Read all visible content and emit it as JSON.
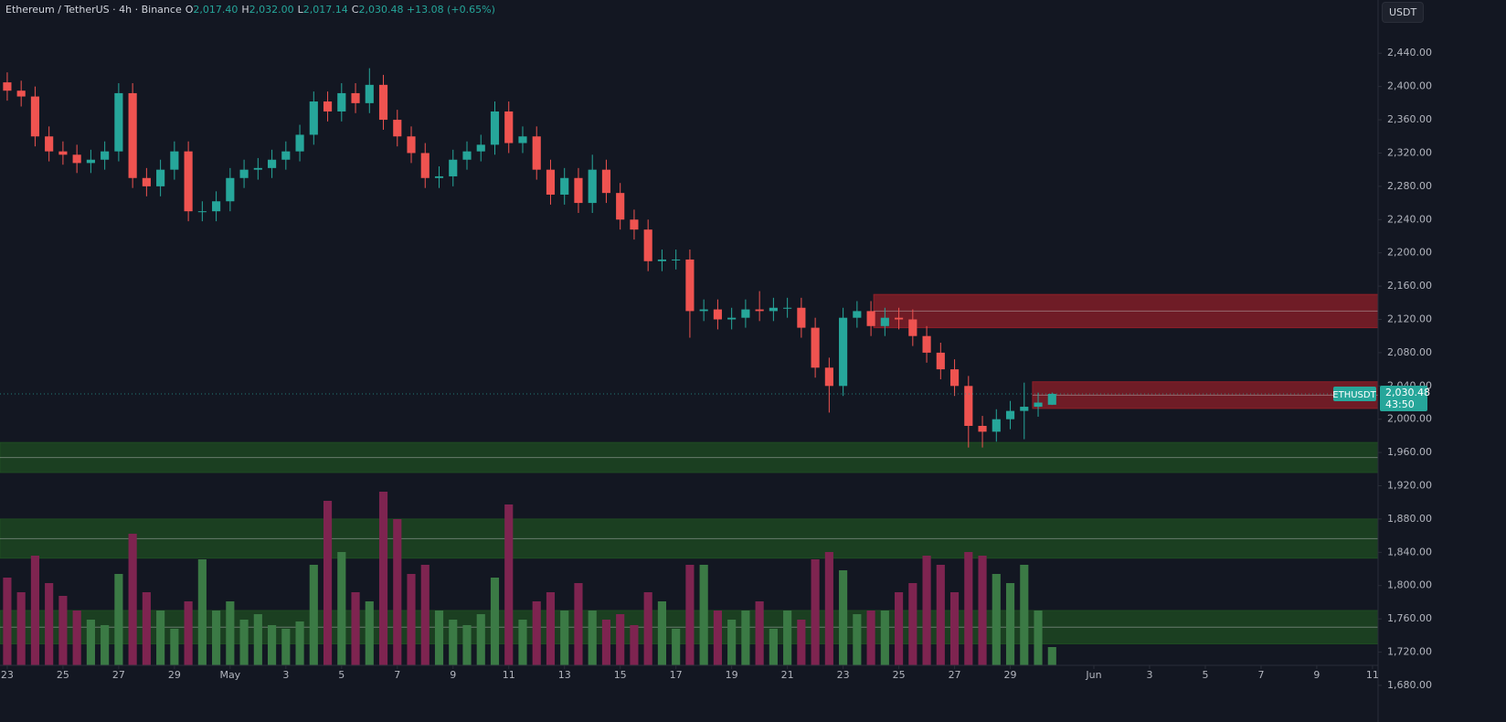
{
  "chart_data": {
    "type": "candlestick",
    "symbol": "Ethereum / TetherUS · 4h · Binance",
    "ohlc_header": [
      {
        "key": "O",
        "value": "2,017.40"
      },
      {
        "key": "H",
        "value": "2,032.00"
      },
      {
        "key": "L",
        "value": "2,017.14"
      },
      {
        "key": "C",
        "value": "2,030.48"
      }
    ],
    "change": "+13.08 (+0.65%)",
    "currency": "USDT",
    "last_price": {
      "value": 2030.48,
      "label": "2,030.48",
      "ticker": "ETHUSDT",
      "countdown": "43:50"
    },
    "up_color": "#26a69a",
    "down_color": "#ef5350",
    "volume_up_color": "#3b7a45",
    "volume_down_color": "#7e2450",
    "x": [
      0,
      0.5,
      1,
      1.5,
      2,
      2.5,
      3,
      3.5,
      4,
      4.5,
      5,
      5.5,
      6,
      6.5,
      7,
      7.5,
      8,
      8.5,
      9,
      9.5,
      10,
      10.5,
      11,
      11.5,
      12,
      12.5,
      13,
      13.5,
      14,
      14.5,
      15,
      15.5,
      16,
      16.5,
      17,
      17.5,
      18,
      18.5,
      19,
      19.5,
      20,
      20.5,
      21,
      21.5,
      22,
      22.5,
      23,
      23.5,
      24,
      24.5,
      25,
      25.5,
      26,
      26.5,
      27,
      27.5,
      28,
      28.5,
      29,
      29.5,
      30,
      30.5,
      31,
      31.5,
      32,
      32.5,
      33,
      33.5,
      34,
      34.5,
      35,
      35.5,
      36,
      36.5,
      37,
      37.5
    ],
    "open": [
      2405,
      2395,
      2388,
      2340,
      2322,
      2318,
      2308,
      2312,
      2322,
      2392,
      2290,
      2280,
      2300,
      2322,
      2250,
      2250,
      2262,
      2290,
      2300,
      2302,
      2312,
      2322,
      2342,
      2382,
      2370,
      2392,
      2380,
      2402,
      2360,
      2340,
      2320,
      2290,
      2292,
      2312,
      2322,
      2330,
      2370,
      2332,
      2340,
      2300,
      2270,
      2290,
      2260,
      2300,
      2272,
      2240,
      2228,
      2190,
      2192,
      2192,
      2130,
      2132,
      2120,
      2122,
      2132,
      2130,
      2134,
      2134,
      2110,
      2062,
      2040,
      2122,
      2130,
      2112,
      2122,
      2120,
      2100,
      2080,
      2060,
      2040,
      1992,
      1985,
      2000,
      2010,
      2015,
      2017.4
    ],
    "high": [
      2417,
      2407,
      2400,
      2352,
      2334,
      2330,
      2324,
      2334,
      2404,
      2404,
      2302,
      2312,
      2334,
      2334,
      2262,
      2274,
      2302,
      2312,
      2314,
      2324,
      2334,
      2354,
      2394,
      2394,
      2404,
      2404,
      2422,
      2414,
      2372,
      2352,
      2332,
      2304,
      2324,
      2334,
      2342,
      2382,
      2382,
      2352,
      2352,
      2312,
      2302,
      2302,
      2318,
      2312,
      2284,
      2252,
      2240,
      2204,
      2204,
      2204,
      2144,
      2144,
      2134,
      2144,
      2154,
      2146,
      2146,
      2146,
      2122,
      2074,
      2134,
      2142,
      2142,
      2134,
      2134,
      2132,
      2112,
      2092,
      2072,
      2052,
      2004,
      2012,
      2022,
      2044,
      2032,
      2032
    ],
    "low": [
      2383,
      2376,
      2328,
      2310,
      2306,
      2296,
      2296,
      2300,
      2310,
      2278,
      2268,
      2268,
      2288,
      2238,
      2238,
      2238,
      2250,
      2278,
      2288,
      2290,
      2300,
      2310,
      2330,
      2358,
      2358,
      2368,
      2368,
      2348,
      2328,
      2308,
      2278,
      2278,
      2280,
      2300,
      2310,
      2318,
      2320,
      2320,
      2288,
      2258,
      2258,
      2248,
      2248,
      2260,
      2228,
      2216,
      2178,
      2178,
      2180,
      2098,
      2118,
      2108,
      2108,
      2110,
      2118,
      2118,
      2122,
      2098,
      2050,
      2008,
      2028,
      2110,
      2100,
      2100,
      2108,
      2088,
      2068,
      2048,
      2028,
      1966,
      1966,
      1973,
      1988,
      1976,
      2003,
      2017.14
    ],
    "close": [
      2395,
      2388,
      2340,
      2322,
      2318,
      2308,
      2312,
      2322,
      2392,
      2290,
      2280,
      2300,
      2322,
      2250,
      2250,
      2262,
      2290,
      2300,
      2302,
      2312,
      2322,
      2342,
      2382,
      2370,
      2392,
      2380,
      2402,
      2360,
      2340,
      2320,
      2290,
      2292,
      2312,
      2322,
      2330,
      2370,
      2332,
      2340,
      2300,
      2270,
      2290,
      2260,
      2300,
      2272,
      2240,
      2228,
      2190,
      2192,
      2192,
      2130,
      2132,
      2120,
      2122,
      2132,
      2130,
      2134,
      2134,
      2110,
      2062,
      2040,
      2122,
      2130,
      2112,
      2122,
      2120,
      2100,
      2080,
      2060,
      2040,
      1992,
      1985,
      2000,
      2010,
      2015,
      2020,
      2030.48
    ],
    "volume": [
      48,
      40,
      60,
      45,
      38,
      30,
      25,
      22,
      50,
      72,
      40,
      30,
      20,
      35,
      58,
      30,
      35,
      25,
      28,
      22,
      20,
      24,
      55,
      90,
      62,
      40,
      35,
      95,
      80,
      50,
      55,
      30,
      25,
      22,
      28,
      48,
      88,
      25,
      35,
      40,
      30,
      45,
      30,
      25,
      28,
      22,
      40,
      35,
      20,
      55,
      55,
      30,
      25,
      30,
      35,
      20,
      30,
      25,
      58,
      62,
      52,
      28,
      30,
      30,
      40,
      45,
      60,
      55,
      40,
      62,
      60,
      50,
      45,
      55,
      30,
      10
    ],
    "vlim": [
      0,
      100
    ],
    "zones": [
      {
        "from": 2110,
        "to": 2150,
        "start": 31.1,
        "color": "#8f1f28"
      },
      {
        "from": 2013,
        "to": 2045,
        "start": 36.8,
        "color": "#8f1f28"
      },
      {
        "from": 1936,
        "to": 1972,
        "color": "#1f4d22"
      },
      {
        "from": 1833,
        "to": 1880,
        "color": "#1f4d22"
      },
      {
        "from": 1730,
        "to": 1770,
        "color": "#1f4d22"
      }
    ],
    "xlim": [
      -0.26,
      49.2
    ],
    "xticks": [
      {
        "value": 0,
        "label": "23"
      },
      {
        "value": 2,
        "label": "25"
      },
      {
        "value": 4,
        "label": "27"
      },
      {
        "value": 6,
        "label": "29"
      },
      {
        "value": 8,
        "label": "May"
      },
      {
        "value": 10,
        "label": "3"
      },
      {
        "value": 12,
        "label": "5"
      },
      {
        "value": 14,
        "label": "7"
      },
      {
        "value": 16,
        "label": "9"
      },
      {
        "value": 18,
        "label": "11"
      },
      {
        "value": 20,
        "label": "13"
      },
      {
        "value": 22,
        "label": "15"
      },
      {
        "value": 24,
        "label": "17"
      },
      {
        "value": 26,
        "label": "19"
      },
      {
        "value": 28,
        "label": "21"
      },
      {
        "value": 30,
        "label": "23"
      },
      {
        "value": 32,
        "label": "25"
      },
      {
        "value": 34,
        "label": "27"
      },
      {
        "value": 36,
        "label": "29"
      },
      {
        "value": 39,
        "label": "Jun"
      },
      {
        "value": 41,
        "label": "3"
      },
      {
        "value": 43,
        "label": "5"
      },
      {
        "value": 45,
        "label": "7"
      },
      {
        "value": 47,
        "label": "9"
      },
      {
        "value": 49,
        "label": "11"
      }
    ],
    "ylim": [
      1636,
      2504
    ],
    "yticks": [
      {
        "value": 2440,
        "label": "2,440.00"
      },
      {
        "value": 2400,
        "label": "2,400.00"
      },
      {
        "value": 2360,
        "label": "2,360.00"
      },
      {
        "value": 2320,
        "label": "2,320.00"
      },
      {
        "value": 2280,
        "label": "2,280.00"
      },
      {
        "value": 2240,
        "label": "2,240.00"
      },
      {
        "value": 2200,
        "label": "2,200.00"
      },
      {
        "value": 2160,
        "label": "2,160.00"
      },
      {
        "value": 2120,
        "label": "2,120.00"
      },
      {
        "value": 2080,
        "label": "2,080.00"
      },
      {
        "value": 2040,
        "label": "2,040.00"
      },
      {
        "value": 2000,
        "label": "2,000.00"
      },
      {
        "value": 1960,
        "label": "1,960.00"
      },
      {
        "value": 1920,
        "label": "1,920.00"
      },
      {
        "value": 1880,
        "label": "1,880.00"
      },
      {
        "value": 1840,
        "label": "1,840.00"
      },
      {
        "value": 1800,
        "label": "1,800.00"
      },
      {
        "value": 1760,
        "label": "1,760.00"
      },
      {
        "value": 1720,
        "label": "1,720.00"
      },
      {
        "value": 1680,
        "label": "1,680.00"
      }
    ]
  }
}
